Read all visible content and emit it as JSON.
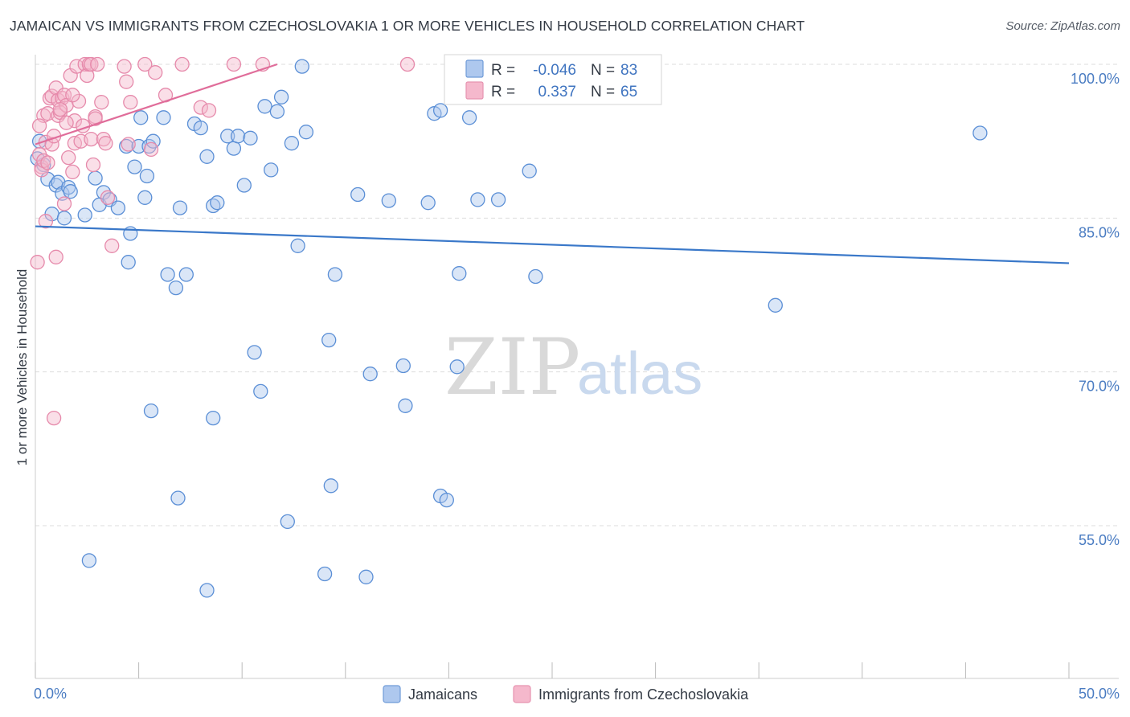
{
  "title": "JAMAICAN VS IMMIGRANTS FROM CZECHOSLOVAKIA 1 OR MORE VEHICLES IN HOUSEHOLD CORRELATION CHART",
  "source": "Source: ZipAtlas.com",
  "watermark": {
    "zip": "ZIP",
    "atlas": "atlas"
  },
  "colors": {
    "blue": "#3a78c9",
    "blue_fill": "#aec8ee",
    "pink": "#e06d9a",
    "pink_fill": "#f5b8cc",
    "tick_text": "#4a7cc2",
    "grid": "#dddddd"
  },
  "legend": {
    "rows": [
      {
        "r_label": "R = ",
        "r_value": "-0.046",
        "n_label": "N = ",
        "n_value": "83",
        "color": "blue"
      },
      {
        "r_label": "R = ",
        "r_value": "0.337",
        "n_label": "N = ",
        "n_value": "65",
        "color": "pink"
      }
    ]
  },
  "chart_data": {
    "type": "scatter",
    "title": "JAMAICAN VS IMMIGRANTS FROM CZECHOSLOVAKIA 1 OR MORE VEHICLES IN HOUSEHOLD CORRELATION CHART",
    "xlabel": "",
    "ylabel": "1 or more Vehicles in Household",
    "xlim": [
      0,
      50
    ],
    "ylim": [
      40,
      101.5
    ],
    "x_tick_labels": [
      {
        "value": 0,
        "label": "0.0%"
      },
      {
        "value": 50,
        "label": "50.0%"
      }
    ],
    "y_tick_labels": [
      {
        "value": 100,
        "label": "100.0%"
      },
      {
        "value": 85,
        "label": "85.0%"
      },
      {
        "value": 70,
        "label": "70.0%"
      },
      {
        "value": 55,
        "label": "55.0%"
      }
    ],
    "grid": "horizontal dashed",
    "legend_position": "top-center",
    "series": [
      {
        "name": "Jamaicans",
        "color": "blue",
        "r": -0.046,
        "n": 83,
        "trend": {
          "x": [
            0,
            50
          ],
          "y": [
            84.2,
            80.6
          ]
        },
        "points": [
          [
            0.2,
            92.5
          ],
          [
            0.4,
            90.2
          ],
          [
            0.6,
            88.8
          ],
          [
            0.8,
            85.4
          ],
          [
            1.0,
            88.2
          ],
          [
            1.1,
            88.5
          ],
          [
            1.3,
            87.4
          ],
          [
            1.4,
            85.0
          ],
          [
            1.6,
            88.0
          ],
          [
            1.7,
            87.6
          ],
          [
            2.4,
            85.3
          ],
          [
            2.9,
            88.9
          ],
          [
            3.1,
            86.3
          ],
          [
            3.3,
            87.5
          ],
          [
            3.6,
            86.8
          ],
          [
            4.0,
            86.0
          ],
          [
            4.4,
            92.0
          ],
          [
            4.5,
            80.7
          ],
          [
            4.6,
            83.5
          ],
          [
            4.8,
            90.0
          ],
          [
            5.0,
            92.0
          ],
          [
            5.1,
            94.8
          ],
          [
            5.3,
            87.0
          ],
          [
            5.4,
            89.1
          ],
          [
            5.5,
            92.0
          ],
          [
            5.7,
            92.5
          ],
          [
            6.2,
            94.8
          ],
          [
            6.4,
            79.5
          ],
          [
            6.8,
            78.2
          ],
          [
            7.0,
            86.0
          ],
          [
            7.3,
            79.5
          ],
          [
            7.7,
            94.2
          ],
          [
            8.0,
            93.8
          ],
          [
            8.3,
            91.0
          ],
          [
            8.6,
            86.2
          ],
          [
            8.8,
            86.5
          ],
          [
            9.3,
            93.0
          ],
          [
            9.6,
            91.8
          ],
          [
            9.8,
            93.0
          ],
          [
            10.1,
            88.2
          ],
          [
            10.4,
            92.8
          ],
          [
            11.1,
            95.9
          ],
          [
            11.4,
            89.7
          ],
          [
            11.7,
            95.4
          ],
          [
            11.9,
            96.8
          ],
          [
            12.4,
            92.3
          ],
          [
            12.7,
            82.3
          ],
          [
            12.9,
            99.8
          ],
          [
            13.1,
            93.4
          ],
          [
            14.5,
            79.5
          ],
          [
            15.6,
            87.3
          ],
          [
            17.1,
            86.7
          ],
          [
            19.0,
            86.5
          ],
          [
            19.3,
            95.2
          ],
          [
            19.6,
            95.5
          ],
          [
            20.5,
            79.6
          ],
          [
            21.0,
            94.8
          ],
          [
            21.4,
            86.8
          ],
          [
            22.4,
            86.8
          ],
          [
            23.9,
            89.6
          ],
          [
            24.2,
            79.3
          ],
          [
            26.5,
            100.0
          ],
          [
            35.8,
            76.5
          ],
          [
            45.7,
            93.3
          ],
          [
            5.6,
            66.2
          ],
          [
            8.6,
            65.5
          ],
          [
            10.6,
            71.9
          ],
          [
            10.9,
            68.1
          ],
          [
            12.2,
            55.4
          ],
          [
            14.2,
            73.1
          ],
          [
            16.2,
            69.8
          ],
          [
            17.8,
            70.6
          ],
          [
            17.9,
            66.7
          ],
          [
            20.4,
            70.5
          ],
          [
            6.9,
            57.7
          ],
          [
            14.3,
            58.9
          ],
          [
            19.6,
            57.9
          ],
          [
            19.9,
            57.5
          ],
          [
            2.6,
            51.6
          ],
          [
            8.3,
            48.7
          ],
          [
            14.0,
            50.3
          ],
          [
            16.0,
            50.0
          ],
          [
            0.1,
            90.8
          ]
        ]
      },
      {
        "name": "Immigrants from Czechoslovakia",
        "color": "pink",
        "r": 0.337,
        "n": 65,
        "trend": {
          "x": [
            0,
            11.7
          ],
          "y": [
            92.2,
            100.0
          ]
        },
        "points": [
          [
            0.1,
            80.7
          ],
          [
            0.2,
            91.2
          ],
          [
            0.3,
            90.0
          ],
          [
            0.3,
            89.7
          ],
          [
            0.4,
            95.0
          ],
          [
            0.4,
            90.6
          ],
          [
            0.5,
            92.4
          ],
          [
            0.5,
            84.7
          ],
          [
            0.6,
            95.2
          ],
          [
            0.7,
            96.7
          ],
          [
            0.8,
            92.2
          ],
          [
            0.8,
            96.9
          ],
          [
            0.9,
            65.5
          ],
          [
            1.0,
            81.2
          ],
          [
            1.0,
            97.7
          ],
          [
            1.1,
            96.5
          ],
          [
            1.1,
            95.0
          ],
          [
            1.2,
            95.3
          ],
          [
            1.3,
            96.7
          ],
          [
            1.4,
            97.0
          ],
          [
            1.4,
            86.4
          ],
          [
            1.5,
            96.0
          ],
          [
            1.6,
            90.9
          ],
          [
            1.7,
            98.9
          ],
          [
            1.8,
            89.5
          ],
          [
            1.9,
            92.3
          ],
          [
            1.9,
            94.5
          ],
          [
            2.0,
            99.8
          ],
          [
            2.1,
            96.4
          ],
          [
            2.2,
            92.5
          ],
          [
            2.3,
            94.0
          ],
          [
            2.4,
            100.0
          ],
          [
            2.5,
            98.9
          ],
          [
            2.6,
            100.0
          ],
          [
            2.7,
            100.0
          ],
          [
            2.7,
            92.7
          ],
          [
            2.8,
            90.2
          ],
          [
            2.9,
            94.9
          ],
          [
            3.0,
            100.0
          ],
          [
            3.2,
            96.3
          ],
          [
            3.3,
            92.7
          ],
          [
            3.5,
            87.0
          ],
          [
            3.7,
            82.3
          ],
          [
            4.3,
            99.8
          ],
          [
            4.4,
            98.3
          ],
          [
            4.5,
            92.2
          ],
          [
            4.6,
            96.3
          ],
          [
            5.3,
            100.0
          ],
          [
            5.6,
            91.7
          ],
          [
            5.8,
            99.2
          ],
          [
            6.3,
            97.0
          ],
          [
            7.1,
            100.0
          ],
          [
            8.0,
            95.8
          ],
          [
            8.4,
            95.5
          ],
          [
            9.6,
            100.0
          ],
          [
            11.0,
            100.0
          ],
          [
            18.0,
            100.0
          ],
          [
            0.6,
            90.4
          ],
          [
            1.2,
            95.6
          ],
          [
            1.8,
            97.0
          ],
          [
            2.9,
            94.7
          ],
          [
            3.4,
            92.3
          ],
          [
            0.9,
            93.0
          ],
          [
            1.5,
            94.3
          ],
          [
            0.2,
            94.0
          ]
        ]
      }
    ]
  }
}
